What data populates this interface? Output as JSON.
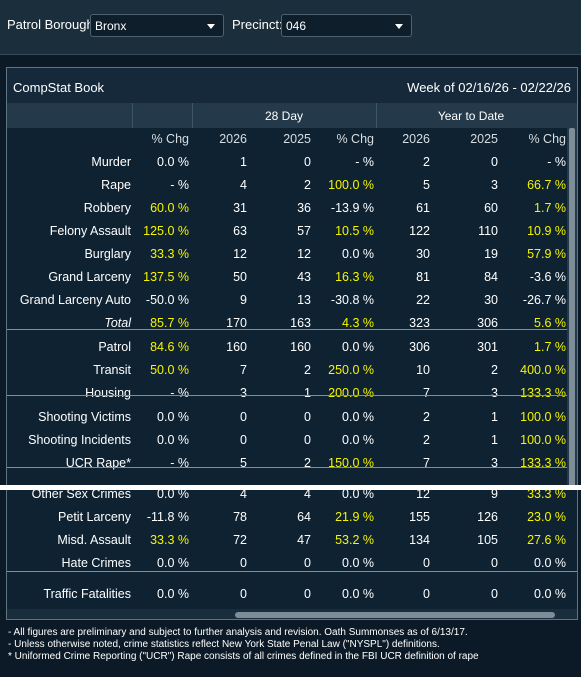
{
  "filters": {
    "borough_label": "Patrol Borough:",
    "borough_value": "Bronx",
    "precinct_label": "Precinct:",
    "precinct_value": "046"
  },
  "report": {
    "title": "CompStat Book",
    "week": "Week of 02/16/26 - 02/22/26",
    "group_28day": "28 Day",
    "group_ytd": "Year to Date",
    "columns": [
      "% Chg",
      "2026",
      "2025",
      "% Chg",
      "2026",
      "2025",
      "% Chg"
    ],
    "rows": [
      {
        "label": "Murder",
        "cells": [
          "0.0 %",
          "1",
          "0",
          "- %",
          "2",
          "0",
          "- %"
        ],
        "hl": [
          false,
          false,
          false,
          false,
          false,
          false,
          false
        ]
      },
      {
        "label": "Rape",
        "cells": [
          "- %",
          "4",
          "2",
          "100.0 %",
          "5",
          "3",
          "66.7 %"
        ],
        "hl": [
          false,
          false,
          false,
          true,
          false,
          false,
          true
        ]
      },
      {
        "label": "Robbery",
        "cells": [
          "60.0 %",
          "31",
          "36",
          "-13.9 %",
          "61",
          "60",
          "1.7 %"
        ],
        "hl": [
          true,
          false,
          false,
          false,
          false,
          false,
          true
        ]
      },
      {
        "label": "Felony Assault",
        "cells": [
          "125.0 %",
          "63",
          "57",
          "10.5 %",
          "122",
          "110",
          "10.9 %"
        ],
        "hl": [
          true,
          false,
          false,
          true,
          false,
          false,
          true
        ]
      },
      {
        "label": "Burglary",
        "cells": [
          "33.3 %",
          "12",
          "12",
          "0.0 %",
          "30",
          "19",
          "57.9 %"
        ],
        "hl": [
          true,
          false,
          false,
          false,
          false,
          false,
          true
        ]
      },
      {
        "label": "Grand Larceny",
        "cells": [
          "137.5 %",
          "50",
          "43",
          "16.3 %",
          "81",
          "84",
          "-3.6 %"
        ],
        "hl": [
          true,
          false,
          false,
          true,
          false,
          false,
          false
        ]
      },
      {
        "label": "Grand Larceny Auto",
        "cells": [
          "-50.0 %",
          "9",
          "13",
          "-30.8 %",
          "22",
          "30",
          "-26.7 %"
        ],
        "hl": [
          false,
          false,
          false,
          false,
          false,
          false,
          false
        ]
      },
      {
        "label": "Total",
        "cells": [
          "85.7 %",
          "170",
          "163",
          "4.3 %",
          "323",
          "306",
          "5.6 %"
        ],
        "hl": [
          true,
          false,
          false,
          true,
          false,
          false,
          true
        ]
      },
      {
        "label": "Patrol",
        "cells": [
          "84.6 %",
          "160",
          "160",
          "0.0 %",
          "306",
          "301",
          "1.7 %"
        ],
        "hl": [
          true,
          false,
          false,
          false,
          false,
          false,
          true
        ]
      },
      {
        "label": "Transit",
        "cells": [
          "50.0 %",
          "7",
          "2",
          "250.0 %",
          "10",
          "2",
          "400.0 %"
        ],
        "hl": [
          true,
          false,
          false,
          true,
          false,
          false,
          true
        ]
      },
      {
        "label": "Housing",
        "cells": [
          "- %",
          "3",
          "1",
          "200.0 %",
          "7",
          "3",
          "133.3 %"
        ],
        "hl": [
          false,
          false,
          false,
          true,
          false,
          false,
          true
        ]
      },
      {
        "label": "Shooting Victims",
        "cells": [
          "0.0 %",
          "0",
          "0",
          "0.0 %",
          "2",
          "1",
          "100.0 %"
        ],
        "hl": [
          false,
          false,
          false,
          false,
          false,
          false,
          true
        ]
      },
      {
        "label": "Shooting Incidents",
        "cells": [
          "0.0 %",
          "0",
          "0",
          "0.0 %",
          "2",
          "1",
          "100.0 %"
        ],
        "hl": [
          false,
          false,
          false,
          false,
          false,
          false,
          true
        ]
      },
      {
        "label": "UCR Rape*",
        "cells": [
          "- %",
          "5",
          "2",
          "150.0 %",
          "7",
          "3",
          "133.3 %"
        ],
        "hl": [
          false,
          false,
          false,
          true,
          false,
          false,
          true
        ]
      },
      {
        "label": "Other Sex Crimes",
        "cells": [
          "0.0 %",
          "4",
          "4",
          "0.0 %",
          "12",
          "9",
          "33.3 %"
        ],
        "hl": [
          false,
          false,
          false,
          false,
          false,
          false,
          true
        ]
      },
      {
        "label": "Petit Larceny",
        "cells": [
          "-11.8 %",
          "78",
          "64",
          "21.9 %",
          "155",
          "126",
          "23.0 %"
        ],
        "hl": [
          false,
          false,
          false,
          true,
          false,
          false,
          true
        ]
      },
      {
        "label": "Misd. Assault",
        "cells": [
          "33.3 %",
          "72",
          "47",
          "53.2 %",
          "134",
          "105",
          "27.6 %"
        ],
        "hl": [
          true,
          false,
          false,
          true,
          false,
          false,
          true
        ]
      },
      {
        "label": "Hate Crimes",
        "cells": [
          "0.0 %",
          "0",
          "0",
          "0.0 %",
          "0",
          "0",
          "0.0 %"
        ],
        "hl": [
          false,
          false,
          false,
          false,
          false,
          false,
          false
        ]
      },
      {
        "label": "Traffic Fatalities",
        "cells": [
          "0.0 %",
          "0",
          "0",
          "0.0 %",
          "0",
          "0",
          "0.0 %"
        ],
        "hl": [
          false,
          false,
          false,
          false,
          false,
          false,
          false
        ]
      }
    ]
  },
  "footnotes": [
    "- All figures are preliminary and subject to further analysis and revision. Oath Summonses as of 6/13/17.",
    "- Unless otherwise noted, crime statistics reflect New York State Penal Law (\"NYSPL\") definitions.",
    "* Uniformed Crime Reporting (\"UCR\") Rape consists of all crimes defined in the FBI UCR definition of rape"
  ],
  "colors": {
    "highlight": "#f5f500",
    "background": "#0e2232",
    "header": "#24394a"
  }
}
